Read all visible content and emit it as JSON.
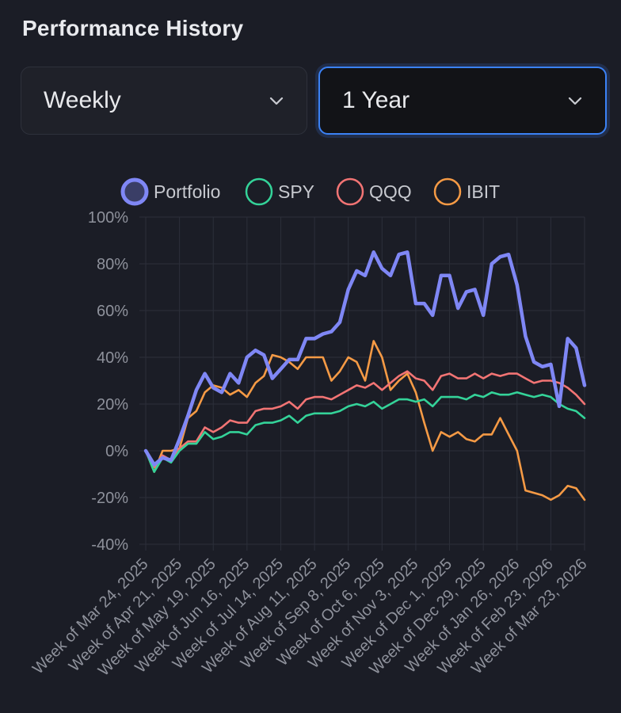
{
  "header": {
    "title": "Performance History"
  },
  "controls": {
    "interval": {
      "value": "Weekly",
      "icon": "chevron-down-icon"
    },
    "range": {
      "value": "1 Year",
      "icon": "chevron-down-icon"
    }
  },
  "colors": {
    "Portfolio": "#7f87f5",
    "SPY": "#34d399",
    "QQQ": "#f27474",
    "IBIT": "#f59a45",
    "grid": "#2c2f3a",
    "focus": "#3b82f6"
  },
  "chart_data": {
    "type": "line",
    "legend_position": "top-center",
    "grid": true,
    "ylim": [
      -40,
      100
    ],
    "yticks": [
      "-40%",
      "-20%",
      "0%",
      "20%",
      "40%",
      "60%",
      "80%",
      "100%"
    ],
    "ytick_values": [
      -40,
      -20,
      0,
      20,
      40,
      60,
      80,
      100
    ],
    "xtick_labels": [
      "Week of Mar 24, 2025",
      "Week of Apr 21, 2025",
      "Week of May 19, 2025",
      "Week of Jun 16, 2025",
      "Week of Jul 14, 2025",
      "Week of Aug 11, 2025",
      "Week of Sep 8, 2025",
      "Week of Oct 6, 2025",
      "Week of Nov 3, 2025",
      "Week of Dec 1, 2025",
      "Week of Dec 29, 2025",
      "Week of Jan 26, 2026",
      "Week of Feb 23, 2026",
      "Week of Mar 23, 2026"
    ],
    "xtick_weeks": [
      0,
      4,
      8,
      12,
      16,
      20,
      24,
      28,
      32,
      36,
      40,
      44,
      48,
      52
    ],
    "series": [
      {
        "name": "Portfolio",
        "values": [
          0,
          -6,
          -3,
          -4,
          5,
          15,
          26,
          33,
          27,
          25,
          33,
          29,
          40,
          43,
          41,
          31,
          35,
          39,
          39,
          48,
          48,
          50,
          51,
          55,
          69,
          77,
          75,
          85,
          78,
          75,
          84,
          85,
          63,
          63,
          58,
          75,
          75,
          61,
          68,
          69,
          58,
          80,
          83,
          84,
          71,
          49,
          38,
          36,
          37,
          19,
          48,
          44,
          28
        ]
      },
      {
        "name": "SPY",
        "values": [
          0,
          -9,
          -3,
          -5,
          0,
          3,
          3,
          8,
          5,
          6,
          8,
          8,
          7,
          11,
          12,
          12,
          13,
          15,
          12,
          15,
          16,
          16,
          16,
          17,
          19,
          20,
          19,
          21,
          18,
          20,
          22,
          22,
          21,
          22,
          19,
          23,
          23,
          23,
          22,
          24,
          23,
          25,
          24,
          24,
          25,
          24,
          23,
          24,
          23,
          20,
          18,
          17,
          14
        ]
      },
      {
        "name": "QQQ",
        "values": [
          0,
          -7,
          -2,
          -4,
          1,
          4,
          4,
          10,
          8,
          10,
          13,
          12,
          12,
          17,
          18,
          18,
          19,
          21,
          18,
          22,
          23,
          23,
          22,
          24,
          26,
          28,
          27,
          29,
          26,
          29,
          32,
          34,
          31,
          30,
          26,
          32,
          33,
          31,
          31,
          33,
          31,
          33,
          32,
          33,
          33,
          31,
          29,
          30,
          30,
          29,
          27,
          24,
          20
        ]
      },
      {
        "name": "IBIT",
        "values": [
          0,
          -9,
          0,
          0,
          1,
          14,
          17,
          25,
          28,
          27,
          24,
          26,
          23,
          29,
          32,
          41,
          40,
          38,
          35,
          40,
          40,
          40,
          30,
          34,
          40,
          38,
          30,
          47,
          40,
          26,
          30,
          33,
          25,
          12,
          0,
          8,
          6,
          8,
          5,
          4,
          7,
          7,
          14,
          7,
          0,
          -17,
          -18,
          -19,
          -21,
          -19,
          -15,
          -16,
          -21
        ]
      }
    ]
  }
}
